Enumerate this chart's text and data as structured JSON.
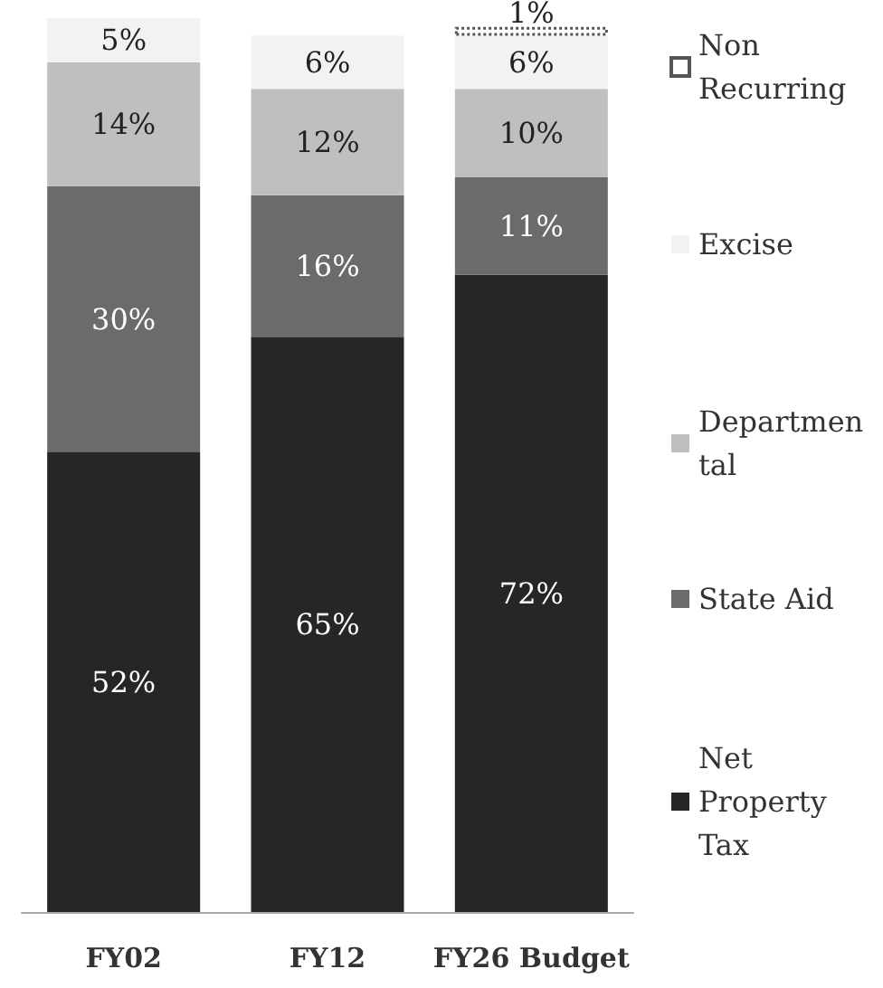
{
  "chart_data": {
    "type": "bar",
    "stacked": true,
    "categories": [
      "FY02",
      "FY12",
      "FY26 Budget"
    ],
    "series": [
      {
        "name": "Net Property Tax",
        "color": "#262626",
        "values": [
          52,
          65,
          72
        ],
        "value_labels": [
          "52%",
          "65%",
          "72%"
        ]
      },
      {
        "name": "State Aid",
        "color": "#6b6b6b",
        "values": [
          30,
          16,
          11
        ],
        "value_labels": [
          "30%",
          "16%",
          "11%"
        ]
      },
      {
        "name": "Departmental",
        "color": "#bfbfbf",
        "values": [
          14,
          12,
          10
        ],
        "value_labels": [
          "14%",
          "12%",
          "10%"
        ]
      },
      {
        "name": "Excise",
        "color": "#f2f2f2",
        "values": [
          5,
          6,
          6
        ],
        "value_labels": [
          "5%",
          "6%",
          "6%"
        ]
      },
      {
        "name": "Non Recurring",
        "color": "#ffffff",
        "line_style": "dotted",
        "values": [
          null,
          null,
          1
        ],
        "value_labels": [
          null,
          null,
          "1%"
        ]
      }
    ],
    "legend": "right"
  }
}
